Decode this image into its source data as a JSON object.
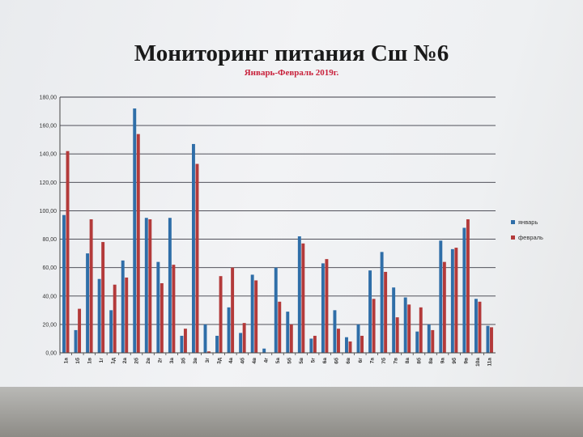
{
  "chart_data": {
    "type": "bar",
    "title": "Мониторинг питания Сш №6",
    "subtitle": "Январь-Февраль 2019г.",
    "xlabel": "",
    "ylabel": "",
    "ylim": [
      0,
      180
    ],
    "yticks": [
      "0,00",
      "20,00",
      "40,00",
      "60,00",
      "80,00",
      "100,00",
      "120,00",
      "140,00",
      "160,00",
      "180,00"
    ],
    "grid": true,
    "legend_position": "right",
    "categories": [
      "1а",
      "1б",
      "1в",
      "1г",
      "1д",
      "2а",
      "2б",
      "2в",
      "2г",
      "3а",
      "3б",
      "3в",
      "3г",
      "3д",
      "4а",
      "4б",
      "4в",
      "4г",
      "5а",
      "5б",
      "5в",
      "5г",
      "6а",
      "6б",
      "6в",
      "6г",
      "7а",
      "7б",
      "7в",
      "8а",
      "8б",
      "8в",
      "9а",
      "9б",
      "9в",
      "10а",
      "11а"
    ],
    "series": [
      {
        "name": "январь",
        "color": "#2f6ea8",
        "values": [
          97,
          16,
          70,
          52,
          30,
          65,
          172,
          95,
          64,
          95,
          12,
          147,
          20,
          12,
          32,
          14,
          55,
          3,
          60,
          29,
          82,
          10,
          63,
          30,
          11,
          20,
          58,
          71,
          46,
          39,
          15,
          20,
          79,
          73,
          88,
          38,
          19
        ]
      },
      {
        "name": "февраль",
        "color": "#b33a3a",
        "values": [
          142,
          31,
          94,
          78,
          48,
          53,
          154,
          94,
          49,
          62,
          17,
          133,
          1,
          54,
          60,
          21,
          51,
          0,
          36,
          20,
          77,
          12,
          66,
          17,
          8,
          12,
          38,
          57,
          25,
          34,
          32,
          16,
          64,
          74,
          94,
          36,
          18
        ]
      }
    ]
  }
}
